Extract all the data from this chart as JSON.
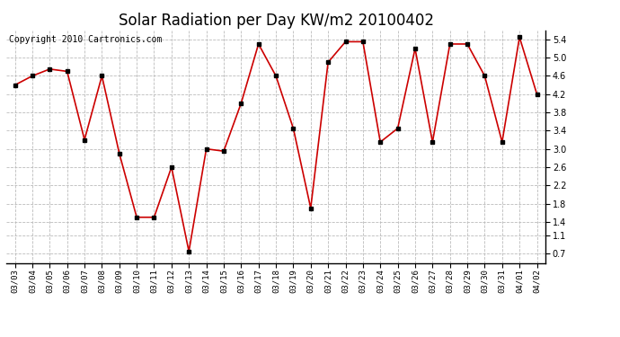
{
  "title": "Solar Radiation per Day KW/m2 20100402",
  "copyright": "Copyright 2010 Cartronics.com",
  "dates": [
    "03/03",
    "03/04",
    "03/05",
    "03/06",
    "03/07",
    "03/08",
    "03/09",
    "03/10",
    "03/11",
    "03/12",
    "03/13",
    "03/14",
    "03/15",
    "03/16",
    "03/17",
    "03/18",
    "03/19",
    "03/20",
    "03/21",
    "03/22",
    "03/23",
    "03/24",
    "03/25",
    "03/26",
    "03/27",
    "03/28",
    "03/29",
    "03/30",
    "03/31",
    "04/01",
    "04/02"
  ],
  "values": [
    4.4,
    4.6,
    4.75,
    4.7,
    3.2,
    4.6,
    2.9,
    1.5,
    1.5,
    2.6,
    0.75,
    3.0,
    2.95,
    4.0,
    5.3,
    4.6,
    3.45,
    1.7,
    4.9,
    5.35,
    5.35,
    3.15,
    3.45,
    5.2,
    3.15,
    5.3,
    5.3,
    4.6,
    3.15,
    5.45,
    4.2
  ],
  "line_color": "#cc0000",
  "marker_color": "#000000",
  "bg_color": "#ffffff",
  "plot_bg_color": "#ffffff",
  "grid_color": "#bbbbbb",
  "yticks": [
    0.7,
    1.1,
    1.4,
    1.8,
    2.2,
    2.6,
    3.0,
    3.4,
    3.8,
    4.2,
    4.6,
    5.0,
    5.4
  ],
  "ylim": [
    0.5,
    5.6
  ],
  "title_fontsize": 12,
  "copyright_fontsize": 7
}
